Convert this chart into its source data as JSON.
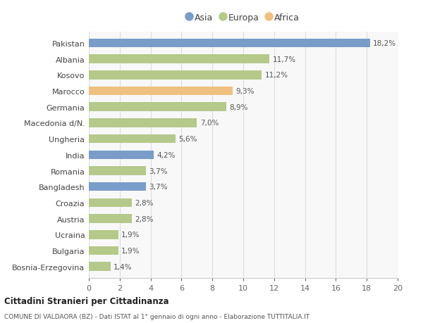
{
  "countries": [
    "Pakistan",
    "Albania",
    "Kosovo",
    "Marocco",
    "Germania",
    "Macedonia d/N.",
    "Ungheria",
    "India",
    "Romania",
    "Bangladesh",
    "Croazia",
    "Austria",
    "Ucraina",
    "Bulgaria",
    "Bosnia-Erzegovina"
  ],
  "values": [
    18.2,
    11.7,
    11.2,
    9.3,
    8.9,
    7.0,
    5.6,
    4.2,
    3.7,
    3.7,
    2.8,
    2.8,
    1.9,
    1.9,
    1.4
  ],
  "labels": [
    "18,2%",
    "11,7%",
    "11,2%",
    "9,3%",
    "8,9%",
    "7,0%",
    "5,6%",
    "4,2%",
    "3,7%",
    "3,7%",
    "2,8%",
    "2,8%",
    "1,9%",
    "1,9%",
    "1,4%"
  ],
  "continents": [
    "Asia",
    "Europa",
    "Europa",
    "Africa",
    "Europa",
    "Europa",
    "Europa",
    "Asia",
    "Europa",
    "Asia",
    "Europa",
    "Europa",
    "Europa",
    "Europa",
    "Europa"
  ],
  "colors": {
    "Asia": "#7a9cc8",
    "Europa": "#b5c98a",
    "Africa": "#f0c080"
  },
  "legend_order": [
    "Asia",
    "Europa",
    "Africa"
  ],
  "title1": "Cittadini Stranieri per Cittadinanza",
  "title2": "COMUNE DI VALDAORA (BZ) - Dati ISTAT al 1° gennaio di ogni anno - Elaborazione TUTTITALIA.IT",
  "xlim": [
    0,
    20
  ],
  "xticks": [
    0,
    2,
    4,
    6,
    8,
    10,
    12,
    14,
    16,
    18,
    20
  ],
  "bg_color": "#f8f8f8",
  "bar_height": 0.55
}
